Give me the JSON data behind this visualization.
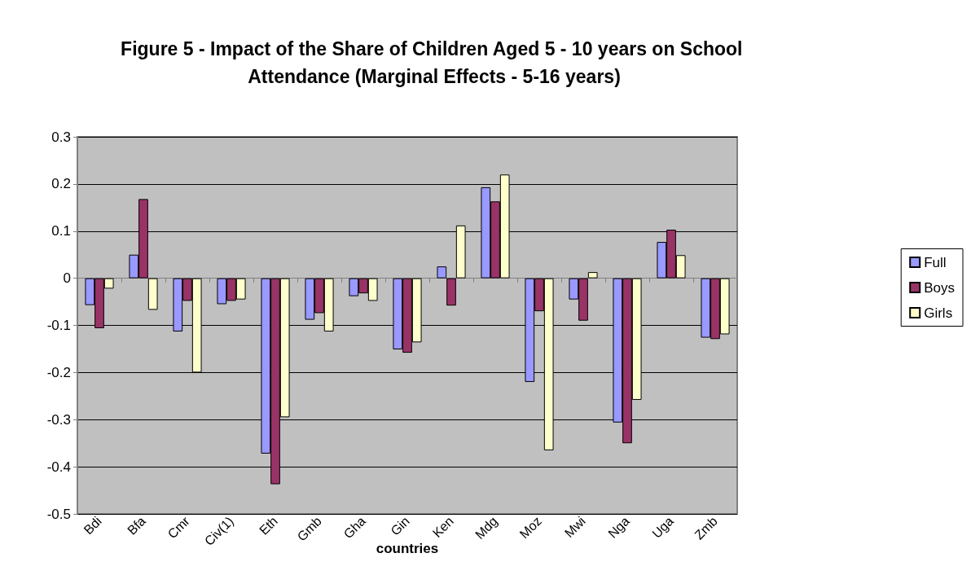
{
  "chart_data": {
    "type": "bar",
    "title": "Figure 5 - Impact of the Share of Children Aged 5 - 10 years on School Attendance (Marginal Effects - 5-16 years)",
    "xlabel": "countries",
    "categories": [
      "Bdi",
      "Bfa",
      "Cmr",
      "Civ(1)",
      "Eth",
      "Gmb",
      "Gha",
      "Gin",
      "Ken",
      "Mdg",
      "Moz",
      "Mwi",
      "Nga",
      "Uga",
      "Zmb"
    ],
    "series": [
      {
        "name": "Full",
        "color": "#9999ff",
        "values": [
          -0.057,
          0.05,
          -0.113,
          -0.055,
          -0.372,
          -0.088,
          -0.038,
          -0.151,
          0.025,
          0.193,
          -0.22,
          -0.045,
          -0.306,
          0.077,
          -0.126
        ]
      },
      {
        "name": "Boys",
        "color": "#993366",
        "values": [
          -0.106,
          0.168,
          -0.048,
          -0.048,
          -0.437,
          -0.074,
          -0.032,
          -0.158,
          -0.058,
          0.163,
          -0.07,
          -0.09,
          -0.35,
          0.103,
          -0.129
        ]
      },
      {
        "name": "Girls",
        "color": "#ffffcc",
        "values": [
          -0.022,
          -0.067,
          -0.2,
          -0.045,
          -0.295,
          -0.113,
          -0.048,
          -0.136,
          0.112,
          0.22,
          -0.365,
          0.013,
          -0.258,
          0.049,
          -0.119
        ]
      }
    ],
    "ylim": [
      -0.5,
      0.3
    ],
    "yticks": [
      -0.5,
      -0.4,
      -0.3,
      -0.2,
      -0.1,
      0,
      0.1,
      0.2,
      0.3
    ],
    "grid": "y",
    "legend": "right"
  }
}
